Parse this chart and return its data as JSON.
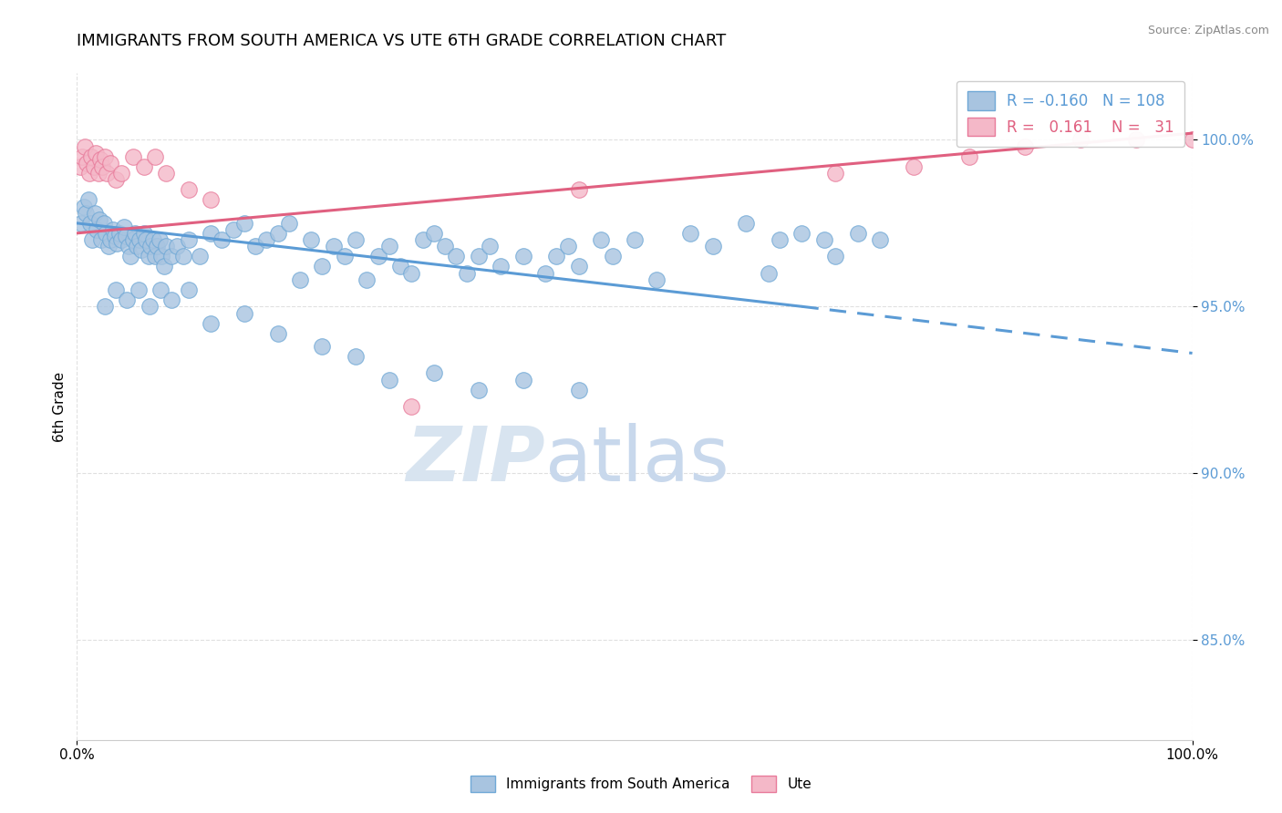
{
  "title": "IMMIGRANTS FROM SOUTH AMERICA VS UTE 6TH GRADE CORRELATION CHART",
  "source_text": "Source: ZipAtlas.com",
  "ylabel": "6th Grade",
  "xlim": [
    0.0,
    100.0
  ],
  "ylim": [
    82.0,
    102.0
  ],
  "ytick_labels": [
    "85.0%",
    "90.0%",
    "95.0%",
    "100.0%"
  ],
  "ytick_values": [
    85.0,
    90.0,
    95.0,
    100.0
  ],
  "xtick_labels": [
    "0.0%",
    "100.0%"
  ],
  "xtick_values": [
    0.0,
    100.0
  ],
  "legend_r_blue": "-0.160",
  "legend_n_blue": "108",
  "legend_r_pink": "0.161",
  "legend_n_pink": "31",
  "blue_color": "#a8c4e0",
  "blue_edge_color": "#6fa8d6",
  "pink_color": "#f4b8c8",
  "pink_edge_color": "#e87a9a",
  "trend_blue_color": "#5b9bd5",
  "trend_pink_color": "#e06080",
  "watermark_zip": "ZIP",
  "watermark_atlas": "atlas",
  "watermark_color": "#d8e4f0",
  "blue_scatter_x": [
    0.4,
    0.6,
    0.8,
    1.0,
    1.2,
    1.4,
    1.6,
    1.8,
    2.0,
    2.2,
    2.4,
    2.6,
    2.8,
    3.0,
    3.2,
    3.4,
    3.6,
    3.8,
    4.0,
    4.2,
    4.4,
    4.6,
    4.8,
    5.0,
    5.2,
    5.4,
    5.6,
    5.8,
    6.0,
    6.2,
    6.4,
    6.6,
    6.8,
    7.0,
    7.2,
    7.4,
    7.6,
    7.8,
    8.0,
    8.5,
    9.0,
    9.5,
    10.0,
    11.0,
    12.0,
    13.0,
    14.0,
    15.0,
    16.0,
    17.0,
    18.0,
    19.0,
    20.0,
    21.0,
    22.0,
    23.0,
    24.0,
    25.0,
    26.0,
    27.0,
    28.0,
    29.0,
    30.0,
    31.0,
    32.0,
    33.0,
    34.0,
    35.0,
    36.0,
    37.0,
    38.0,
    40.0,
    42.0,
    43.0,
    44.0,
    45.0,
    47.0,
    48.0,
    50.0,
    52.0,
    55.0,
    57.0,
    60.0,
    62.0,
    63.0,
    65.0,
    67.0,
    68.0,
    70.0,
    72.0,
    2.5,
    3.5,
    4.5,
    5.5,
    6.5,
    7.5,
    8.5,
    10.0,
    12.0,
    15.0,
    18.0,
    22.0,
    25.0,
    28.0,
    32.0,
    36.0,
    40.0,
    45.0
  ],
  "blue_scatter_y": [
    97.5,
    98.0,
    97.8,
    98.2,
    97.5,
    97.0,
    97.8,
    97.3,
    97.6,
    97.0,
    97.5,
    97.2,
    96.8,
    97.0,
    97.3,
    97.1,
    96.9,
    97.2,
    97.0,
    97.4,
    97.1,
    96.8,
    96.5,
    97.0,
    97.2,
    96.8,
    97.0,
    96.7,
    97.2,
    97.0,
    96.5,
    96.8,
    97.0,
    96.5,
    96.8,
    97.0,
    96.5,
    96.2,
    96.8,
    96.5,
    96.8,
    96.5,
    97.0,
    96.5,
    97.2,
    97.0,
    97.3,
    97.5,
    96.8,
    97.0,
    97.2,
    97.5,
    95.8,
    97.0,
    96.2,
    96.8,
    96.5,
    97.0,
    95.8,
    96.5,
    96.8,
    96.2,
    96.0,
    97.0,
    97.2,
    96.8,
    96.5,
    96.0,
    96.5,
    96.8,
    96.2,
    96.5,
    96.0,
    96.5,
    96.8,
    96.2,
    97.0,
    96.5,
    97.0,
    95.8,
    97.2,
    96.8,
    97.5,
    96.0,
    97.0,
    97.2,
    97.0,
    96.5,
    97.2,
    97.0,
    95.0,
    95.5,
    95.2,
    95.5,
    95.0,
    95.5,
    95.2,
    95.5,
    94.5,
    94.8,
    94.2,
    93.8,
    93.5,
    92.8,
    93.0,
    92.5,
    92.8,
    92.5
  ],
  "pink_scatter_x": [
    0.3,
    0.5,
    0.7,
    0.9,
    1.1,
    1.3,
    1.5,
    1.7,
    1.9,
    2.1,
    2.3,
    2.5,
    2.7,
    3.0,
    3.5,
    4.0,
    5.0,
    6.0,
    7.0,
    8.0,
    10.0,
    12.0,
    30.0,
    45.0,
    68.0,
    75.0,
    80.0,
    85.0,
    90.0,
    95.0,
    100.0
  ],
  "pink_scatter_y": [
    99.2,
    99.5,
    99.8,
    99.3,
    99.0,
    99.5,
    99.2,
    99.6,
    99.0,
    99.4,
    99.2,
    99.5,
    99.0,
    99.3,
    98.8,
    99.0,
    99.5,
    99.2,
    99.5,
    99.0,
    98.5,
    98.2,
    92.0,
    98.5,
    99.0,
    99.2,
    99.5,
    99.8,
    100.0,
    100.0,
    100.0
  ],
  "blue_trend_x0": 0.0,
  "blue_trend_y0": 97.5,
  "blue_trend_x1": 65.0,
  "blue_trend_y1": 95.0,
  "blue_dash_x0": 65.0,
  "blue_dash_y0": 95.0,
  "blue_dash_x1": 100.0,
  "blue_dash_y1": 93.6,
  "pink_trend_x0": 0.0,
  "pink_trend_y0": 97.2,
  "pink_trend_x1": 100.0,
  "pink_trend_y1": 100.2,
  "background_color": "#ffffff",
  "grid_color": "#e0e0e0"
}
